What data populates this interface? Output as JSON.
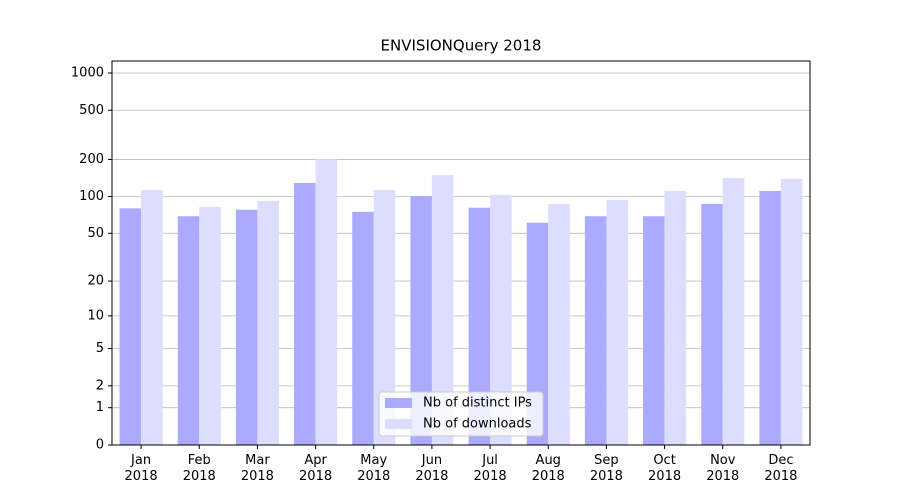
{
  "chart_data": {
    "type": "bar",
    "title": "ENVISIONQuery 2018",
    "categories": [
      "Jan\n2018",
      "Feb\n2018",
      "Mar\n2018",
      "Apr\n2018",
      "May\n2018",
      "Jun\n2018",
      "Jul\n2018",
      "Aug\n2018",
      "Sep\n2018",
      "Oct\n2018",
      "Nov\n2018",
      "Dec\n2018"
    ],
    "series": [
      {
        "name": "Nb of distinct IPs",
        "color": "#aaaaff",
        "values": [
          80,
          69,
          78,
          129,
          75,
          101,
          81,
          61,
          69,
          69,
          87,
          111
        ]
      },
      {
        "name": "Nb of downloads",
        "color": "#ddddff",
        "values": [
          113,
          82,
          92,
          201,
          113,
          149,
          103,
          87,
          94,
          111,
          141,
          139
        ]
      }
    ],
    "yscale": "log1p",
    "ylim": [
      0,
      1250
    ],
    "yticks": [
      0,
      1,
      2,
      5,
      10,
      20,
      50,
      100,
      200,
      500,
      1000
    ],
    "grid": true,
    "legend": "lower center"
  }
}
